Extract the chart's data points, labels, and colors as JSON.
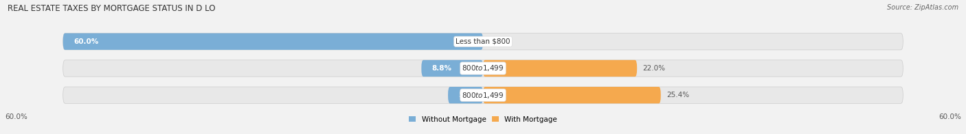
{
  "title": "REAL ESTATE TAXES BY MORTGAGE STATUS IN D LO",
  "source": "Source: ZipAtlas.com",
  "rows": [
    {
      "label": "Less than $800",
      "without_mortgage": 60.0,
      "with_mortgage": 0.0
    },
    {
      "label": "$800 to $1,499",
      "without_mortgage": 8.8,
      "with_mortgage": 22.0
    },
    {
      "label": "$800 to $1,499",
      "without_mortgage": 5.0,
      "with_mortgage": 25.4
    }
  ],
  "x_axis_left_label": "60.0%",
  "x_axis_right_label": "60.0%",
  "color_without": "#7aaed6",
  "color_with": "#f5a94e",
  "color_without_light": "#b8d4ea",
  "color_with_light": "#f9cfa0",
  "bar_height": 0.62,
  "background_color": "#f2f2f2",
  "bar_bg_color": "#e4e4e4",
  "title_fontsize": 8.5,
  "label_fontsize": 7.5,
  "value_fontsize": 7.5,
  "legend_fontsize": 7.5,
  "axis_label_fontsize": 7.5,
  "max_value": 60.0
}
